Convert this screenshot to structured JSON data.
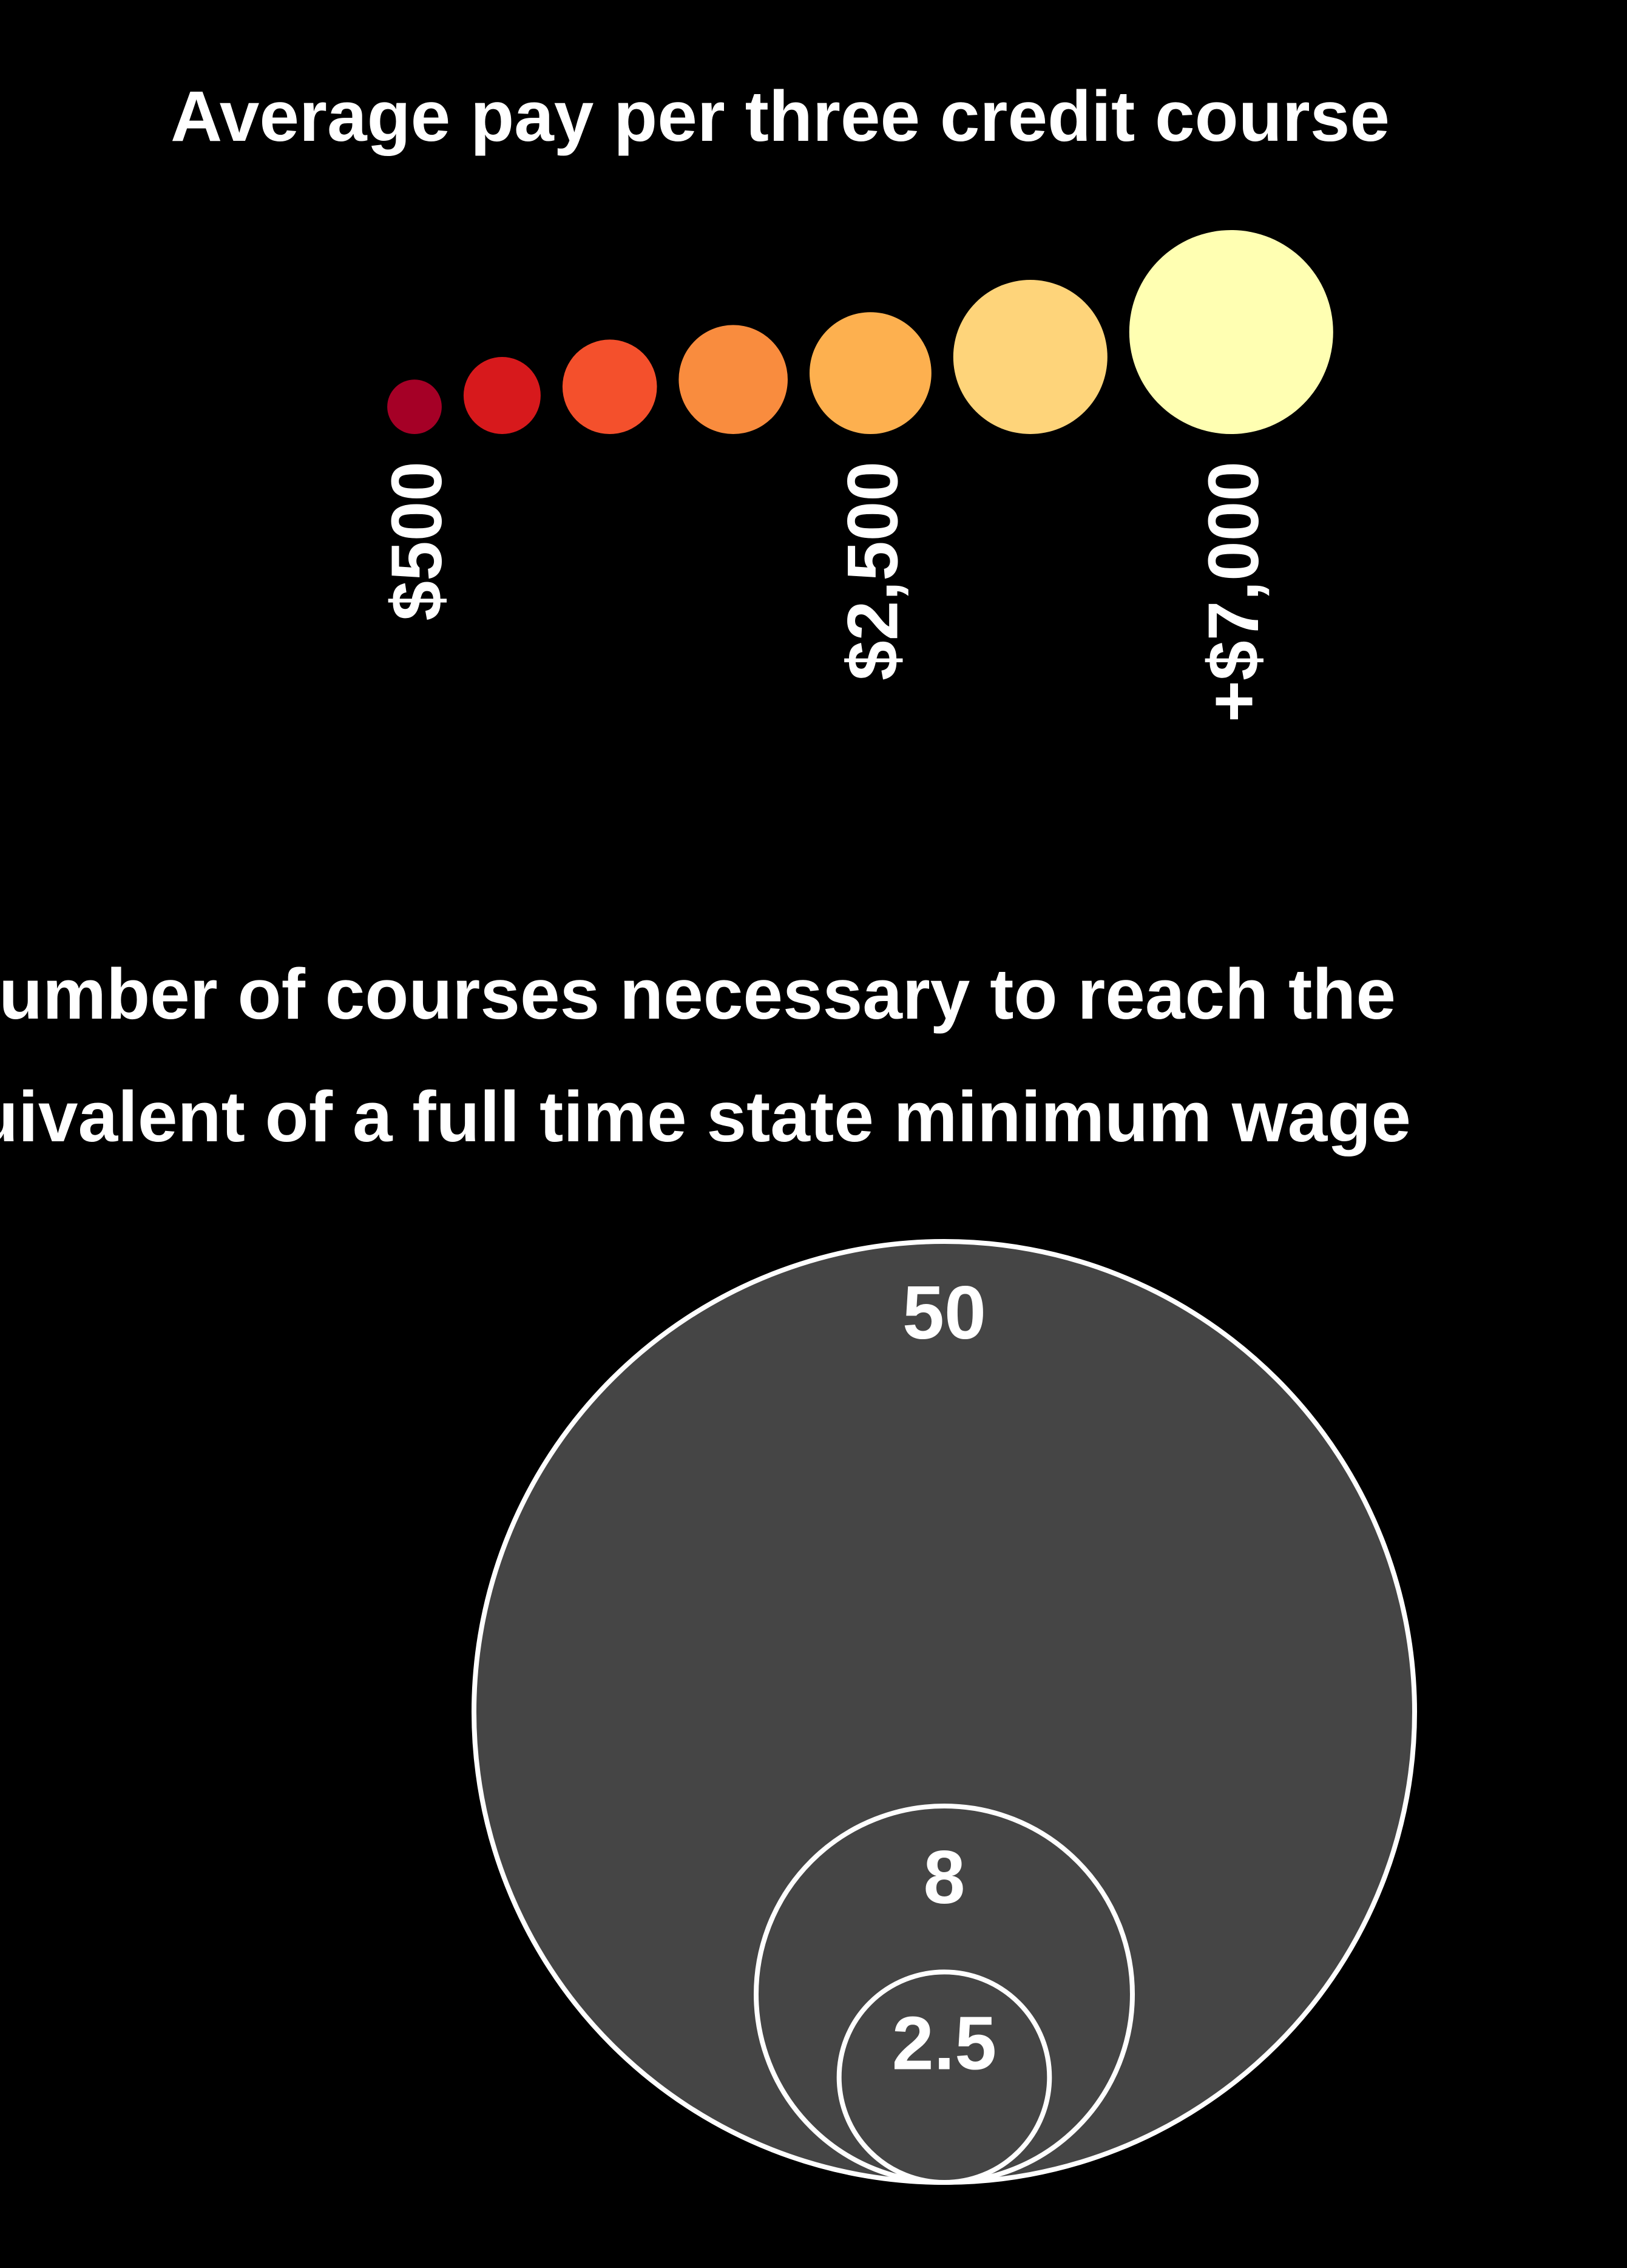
{
  "chart_data": [
    {
      "type": "bubble",
      "title": "Average pay per three credit course",
      "values": [
        500,
        1000,
        1500,
        2000,
        2500,
        4000,
        7000
      ],
      "colors": [
        "#a50026",
        "#d7191c",
        "#f4502c",
        "#f98c3e",
        "#fdb04f",
        "#fed47a",
        "#ffffb2"
      ],
      "tick_labels": [
        {
          "index": 0,
          "label": "$500"
        },
        {
          "index": 4,
          "label": "$2,500"
        },
        {
          "index": 6,
          "label": "+$7,000"
        }
      ]
    },
    {
      "type": "nested-circles",
      "title_lines": [
        "Number of courses necessary to reach the",
        "equivalent of a full time state minimum wage"
      ],
      "values": [
        50,
        8,
        2.5
      ],
      "labels": [
        "50",
        "8",
        "2.5"
      ],
      "fill": "#454545",
      "stroke": "#ffffff"
    }
  ]
}
